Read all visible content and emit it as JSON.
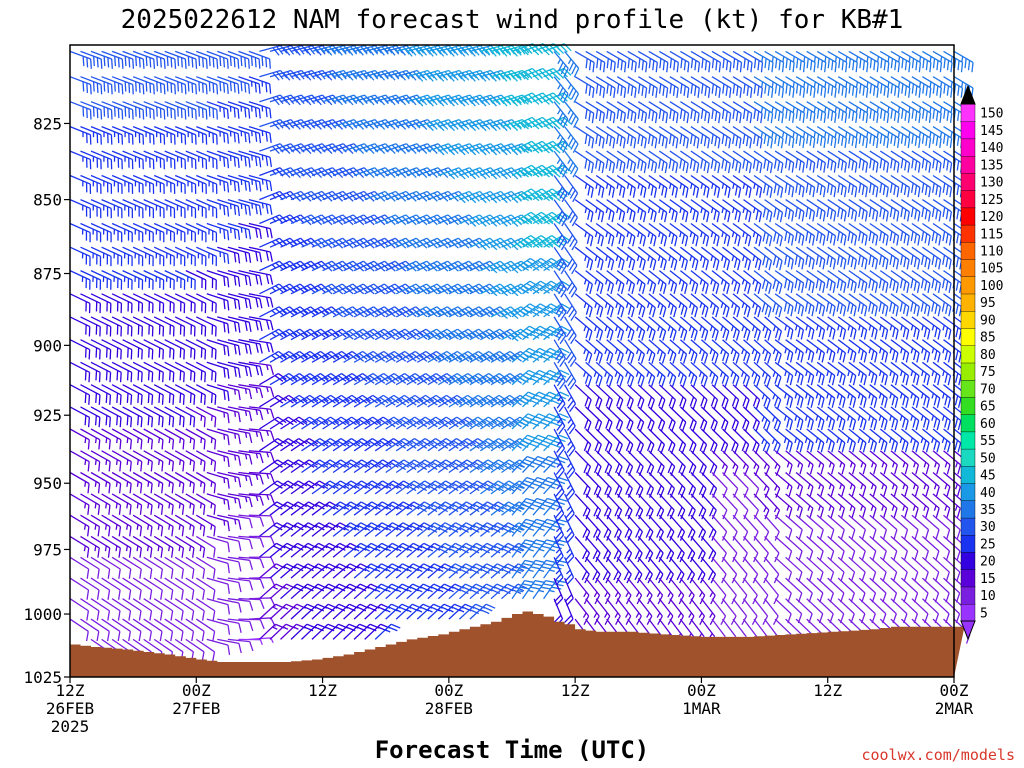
{
  "chart_data": {
    "type": "wind-barb-time-height",
    "title": "2025022612 NAM forecast wind profile (kt) for KB#1",
    "xlabel": "Forecast Time (UTC)",
    "ylabel": "",
    "credit": "coolwx.com/models",
    "x_ticks": [
      {
        "hour": 0,
        "lines": [
          "12Z",
          "26FEB",
          "2025"
        ]
      },
      {
        "hour": 12,
        "lines": [
          "00Z",
          "27FEB"
        ]
      },
      {
        "hour": 24,
        "lines": [
          "12Z"
        ]
      },
      {
        "hour": 36,
        "lines": [
          "00Z",
          "28FEB"
        ]
      },
      {
        "hour": 48,
        "lines": [
          "12Z"
        ]
      },
      {
        "hour": 60,
        "lines": [
          "00Z",
          "1MAR"
        ]
      },
      {
        "hour": 72,
        "lines": [
          "12Z"
        ]
      },
      {
        "hour": 84,
        "lines": [
          "00Z",
          "2MAR"
        ]
      }
    ],
    "xlim_hours": [
      0,
      84
    ],
    "y_ticks": [
      825,
      850,
      875,
      900,
      925,
      950,
      975,
      1000,
      1025
    ],
    "ylim_hPa": [
      800,
      1025
    ],
    "yscale": "log-pressure",
    "barb_hours_step": 1,
    "barb_levels_hPa": [
      802,
      810,
      818,
      826,
      834,
      842,
      850,
      858,
      866,
      874,
      882,
      890,
      898,
      906,
      914,
      922,
      930,
      938,
      946,
      954,
      962,
      970,
      978,
      986,
      994,
      1002,
      1010,
      1018
    ],
    "surface_pressure": {
      "hours": [
        0,
        2,
        5,
        9,
        12,
        14,
        17,
        20,
        23,
        26,
        29,
        32,
        35,
        38,
        40,
        42,
        43,
        44,
        45,
        46,
        47,
        48,
        50,
        53,
        56,
        60,
        64,
        68,
        72,
        76,
        78,
        80,
        82,
        84
      ],
      "values_hPa": [
        1012,
        1013,
        1014,
        1016,
        1018,
        1019,
        1019,
        1019,
        1018,
        1016,
        1013,
        1010,
        1008,
        1005,
        1003,
        1000,
        999,
        1000,
        1001,
        1003,
        1004,
        1006,
        1007,
        1007,
        1008,
        1009,
        1009,
        1008,
        1007,
        1006,
        1005,
        1005,
        1005,
        1005
      ]
    },
    "wind_field_summary": [
      {
        "period": "26FEB 12Z - 27FEB 06Z",
        "low_levels": "WNW-NW 5-15 kt",
        "upper": "WNW 20-30 kt"
      },
      {
        "period": "27FEB 06Z - 28FEB 06Z",
        "low_levels": "SW 15-30 kt",
        "upper": "WSW 30-45 kt"
      },
      {
        "period": "28FEB 06Z - 28FEB 10Z",
        "low_levels": "SW-S 30-45 kt",
        "upper": "WSW 40-50 kt"
      },
      {
        "period": "28FEB 10Z",
        "event": "frontal wind shift"
      },
      {
        "period": "28FEB 12Z - 2MAR 00Z",
        "low_levels": "NW-N 10-25 kt",
        "upper": "NW-WNW 25-40 kt"
      }
    ],
    "colorbar": {
      "title": "",
      "labels": [
        5,
        10,
        15,
        20,
        25,
        30,
        35,
        40,
        45,
        50,
        55,
        60,
        65,
        70,
        75,
        80,
        85,
        90,
        95,
        100,
        105,
        110,
        115,
        120,
        125,
        130,
        135,
        140,
        145,
        150
      ],
      "colors": [
        "#9933ff",
        "#7a1fe0",
        "#5a00d8",
        "#3300e0",
        "#1a33f0",
        "#2255ee",
        "#1f77e8",
        "#1a99e6",
        "#12b8d8",
        "#1ad9c0",
        "#00e8a8",
        "#00e060",
        "#33dd22",
        "#66e61a",
        "#99ee00",
        "#ccff00",
        "#ffff00",
        "#ffd700",
        "#ffb300",
        "#ff9900",
        "#ff8000",
        "#ff6600",
        "#ff3300",
        "#ff0000",
        "#ff0040",
        "#ff0070",
        "#ff00a0",
        "#ff00cc",
        "#ff00ee",
        "#ff33ff"
      ]
    },
    "surface_color": "#a0522d"
  }
}
